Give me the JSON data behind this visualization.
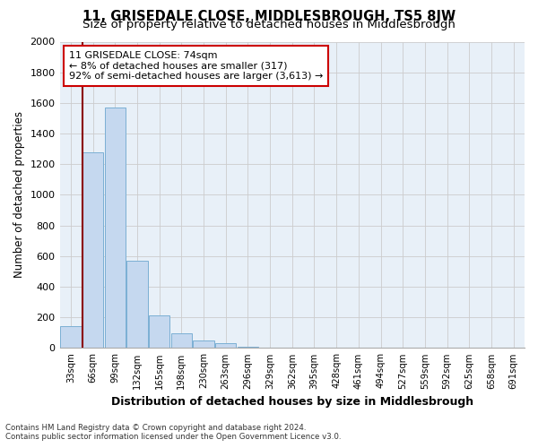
{
  "title": "11, GRISEDALE CLOSE, MIDDLESBROUGH, TS5 8JW",
  "subtitle": "Size of property relative to detached houses in Middlesbrough",
  "xlabel": "Distribution of detached houses by size in Middlesbrough",
  "ylabel": "Number of detached properties",
  "categories": [
    "33sqm",
    "66sqm",
    "99sqm",
    "132sqm",
    "165sqm",
    "198sqm",
    "230sqm",
    "263sqm",
    "296sqm",
    "329sqm",
    "362sqm",
    "395sqm",
    "428sqm",
    "461sqm",
    "494sqm",
    "527sqm",
    "559sqm",
    "592sqm",
    "625sqm",
    "658sqm",
    "691sqm"
  ],
  "values": [
    140,
    1275,
    1570,
    570,
    215,
    95,
    50,
    30,
    10,
    0,
    0,
    0,
    0,
    0,
    0,
    0,
    0,
    0,
    0,
    0,
    0
  ],
  "bar_color": "#c5d8ef",
  "bar_edge_color": "#7bafd4",
  "vline_color": "#8b0000",
  "ylim": [
    0,
    2000
  ],
  "yticks": [
    0,
    200,
    400,
    600,
    800,
    1000,
    1200,
    1400,
    1600,
    1800,
    2000
  ],
  "annotation_line1": "11 GRISEDALE CLOSE: 74sqm",
  "annotation_line2": "← 8% of detached houses are smaller (317)",
  "annotation_line3": "92% of semi-detached houses are larger (3,613) →",
  "footer_line1": "Contains HM Land Registry data © Crown copyright and database right 2024.",
  "footer_line2": "Contains public sector information licensed under the Open Government Licence v3.0.",
  "grid_color": "#cccccc",
  "plot_bg_color": "#e8f0f8",
  "background_color": "#ffffff",
  "title_fontsize": 10.5,
  "subtitle_fontsize": 9.5,
  "vline_x_index": 1
}
